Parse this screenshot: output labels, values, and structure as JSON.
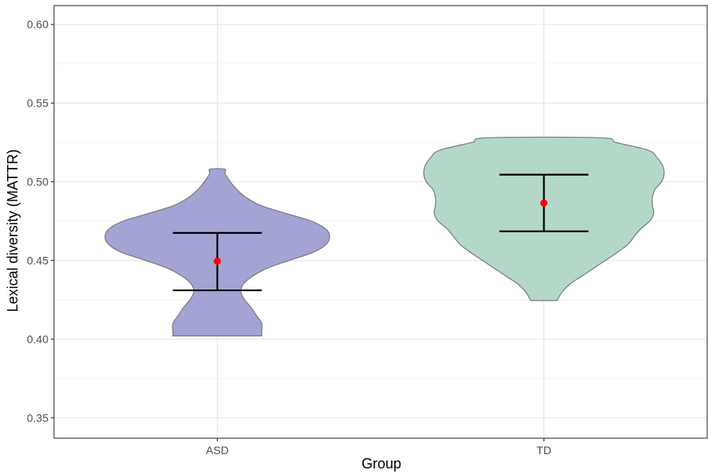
{
  "chart_data": {
    "type": "violin",
    "xlabel": "Group",
    "ylabel": "Lexical diversity (MATTR)",
    "categories": [
      "ASD",
      "TD"
    ],
    "ylim": [
      0.337,
      0.612
    ],
    "yticks": [
      0.35,
      0.4,
      0.45,
      0.5,
      0.55,
      0.6
    ],
    "ytick_labels": [
      "0.35",
      "0.40",
      "0.45",
      "0.50",
      "0.55",
      "0.60"
    ],
    "grid": true,
    "series": [
      {
        "category": "ASD",
        "color": "#a3a3d4",
        "min": 0.402,
        "max": 0.508,
        "mean": 0.4495,
        "ci_low": 0.431,
        "ci_high": 0.4675,
        "density_profile": [
          [
            0.402,
            0.34
          ],
          [
            0.405,
            0.34
          ],
          [
            0.41,
            0.34
          ],
          [
            0.415,
            0.3
          ],
          [
            0.42,
            0.26
          ],
          [
            0.425,
            0.21
          ],
          [
            0.43,
            0.18
          ],
          [
            0.435,
            0.2
          ],
          [
            0.44,
            0.27
          ],
          [
            0.445,
            0.38
          ],
          [
            0.45,
            0.55
          ],
          [
            0.455,
            0.73
          ],
          [
            0.46,
            0.83
          ],
          [
            0.465,
            0.86
          ],
          [
            0.47,
            0.83
          ],
          [
            0.475,
            0.72
          ],
          [
            0.48,
            0.52
          ],
          [
            0.485,
            0.33
          ],
          [
            0.49,
            0.22
          ],
          [
            0.495,
            0.15
          ],
          [
            0.5,
            0.1
          ],
          [
            0.505,
            0.06
          ],
          [
            0.508,
            0.055
          ]
        ]
      },
      {
        "category": "TD",
        "color": "#b4d8c8",
        "min": 0.4245,
        "max": 0.528,
        "mean": 0.4865,
        "ci_low": 0.4685,
        "ci_high": 0.5045,
        "density_profile": [
          [
            0.4245,
            0.1
          ],
          [
            0.43,
            0.14
          ],
          [
            0.435,
            0.2
          ],
          [
            0.44,
            0.29
          ],
          [
            0.445,
            0.38
          ],
          [
            0.45,
            0.47
          ],
          [
            0.455,
            0.56
          ],
          [
            0.46,
            0.64
          ],
          [
            0.465,
            0.69
          ],
          [
            0.47,
            0.74
          ],
          [
            0.475,
            0.81
          ],
          [
            0.48,
            0.84
          ],
          [
            0.485,
            0.83
          ],
          [
            0.49,
            0.83
          ],
          [
            0.495,
            0.85
          ],
          [
            0.5,
            0.9
          ],
          [
            0.505,
            0.92
          ],
          [
            0.51,
            0.91
          ],
          [
            0.515,
            0.87
          ],
          [
            0.52,
            0.8
          ],
          [
            0.525,
            0.55
          ],
          [
            0.528,
            0.43
          ]
        ]
      }
    ],
    "mean_point_color": "#ff0000",
    "errorbar_color": "#000000"
  }
}
